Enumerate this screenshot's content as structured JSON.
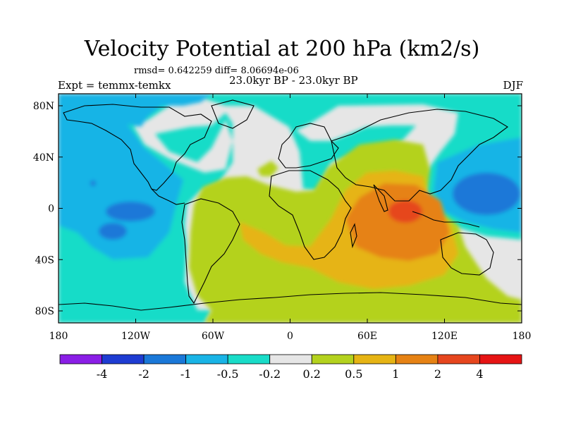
{
  "title": "Velocity Potential at 200 hPa (km2/s)",
  "stats": "rmsd= 0.642259 diff= 8.06694e-06",
  "period": "23.0kyr BP - 23.0kyr BP",
  "experiment": "Expt = temmx-temkx",
  "season": "DJF",
  "lat_ticks": [
    "80N",
    "40N",
    "0",
    "40S",
    "80S"
  ],
  "lon_ticks": [
    "180",
    "120W",
    "60W",
    "0",
    "60E",
    "120E",
    "180"
  ],
  "colorbar": {
    "labels": [
      "-4",
      "-2",
      "-1",
      "-0.5",
      "-0.2",
      "0.2",
      "0.5",
      "1",
      "2",
      "4"
    ],
    "colors": [
      "#8a1ee6",
      "#1e3cd2",
      "#1a78d8",
      "#19b4e6",
      "#19dcc8",
      "#e6e6e6",
      "#b4d21e",
      "#e6b414",
      "#e68214",
      "#e6461e",
      "#e61414"
    ]
  }
}
